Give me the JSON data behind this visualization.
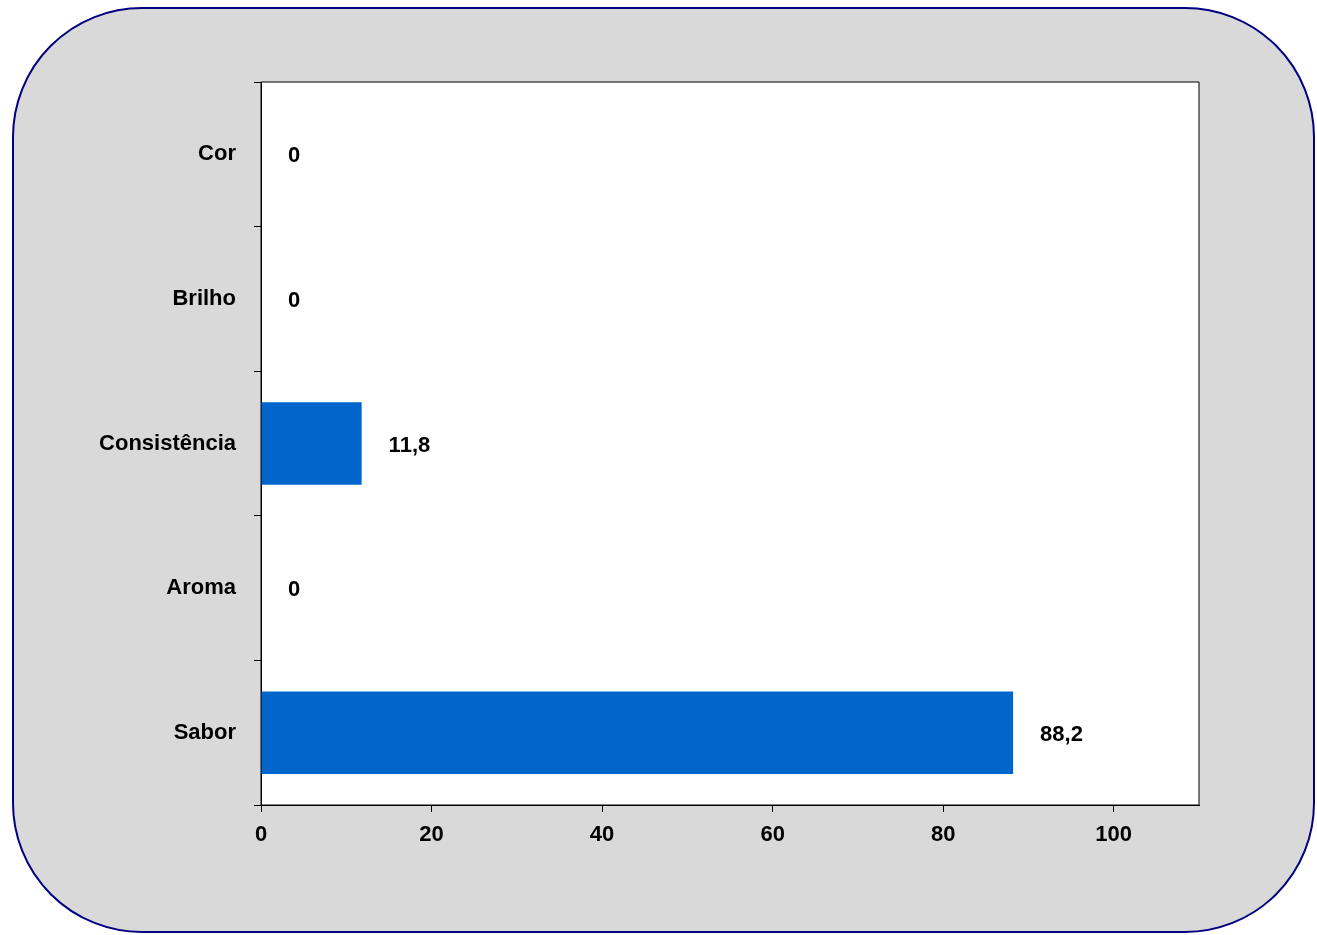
{
  "chart_data": {
    "type": "bar",
    "orientation": "horizontal",
    "categories": [
      "Cor",
      "Brilho",
      "Consistência",
      "Aroma",
      "Sabor"
    ],
    "values": [
      0,
      0,
      11.8,
      0,
      88.2
    ],
    "value_labels": [
      "0",
      "0",
      "11,8",
      "0",
      "88,2"
    ],
    "color": "#0066cc",
    "xlim": [
      0,
      110
    ],
    "xticks": [
      0,
      20,
      40,
      60,
      80,
      100
    ],
    "grid": false,
    "legend": false
  }
}
